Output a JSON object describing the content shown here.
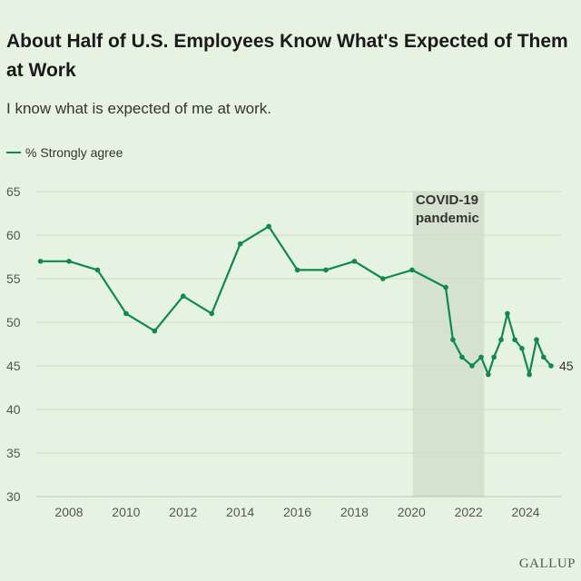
{
  "title": "About Half of U.S. Employees Know What's Expected of Them at Work",
  "subtitle": "I know what is expected of me at work.",
  "logo": "GALLUP",
  "colors": {
    "line": "#0e8a4b",
    "background": "#e6f3e2",
    "shade": "#d4e2cf",
    "grid": "#cfdccb"
  },
  "chart_data": {
    "type": "line",
    "title": "About Half of U.S. Employees Know What's Expected of Them at Work",
    "subtitle": "I know what is expected of me at work.",
    "xlabel": "",
    "ylabel": "",
    "ylim": [
      30,
      65
    ],
    "xlim": [
      2006.9,
      2025.5
    ],
    "yticks": [
      30,
      35,
      40,
      45,
      50,
      55,
      60,
      65
    ],
    "xticks": [
      2008,
      2010,
      2012,
      2014,
      2016,
      2018,
      2020,
      2022,
      2024
    ],
    "grid": "horizontal",
    "legend": "top-left",
    "series": [
      {
        "name": "% Strongly agree",
        "x": [
          2007,
          2008,
          2009,
          2010,
          2011,
          2012,
          2013,
          2014,
          2015,
          2016,
          2017,
          2018,
          2019,
          2020.02,
          2021.2,
          2021.45,
          2021.77,
          2022.12,
          2022.44,
          2022.69,
          2022.89,
          2023.14,
          2023.36,
          2023.62,
          2023.87,
          2024.13,
          2024.38,
          2024.63,
          2024.89
        ],
        "values": [
          57,
          57,
          56,
          51,
          49,
          53,
          51,
          59,
          61,
          56,
          56,
          57,
          55,
          56,
          54,
          48,
          46,
          45,
          46,
          44,
          46,
          48,
          51,
          48,
          47,
          44,
          48,
          46,
          45
        ]
      }
    ],
    "annotations": [
      {
        "type": "shaded-region",
        "x_range": [
          2020.05,
          2022.55
        ],
        "label": "COVID-19 pandemic",
        "label_lines": [
          "COVID-19",
          "pandemic"
        ]
      },
      {
        "type": "end-label",
        "text": "45"
      }
    ]
  }
}
